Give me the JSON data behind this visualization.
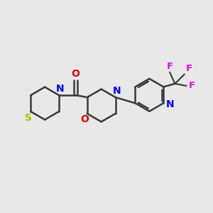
{
  "bg_color": "#e8e8e8",
  "bond_color": "#3a3a3a",
  "N_color": "#0000ff",
  "O_color": "#dd0000",
  "S_color": "#bbbb00",
  "F_color": "#ee00ee",
  "line_width": 1.8,
  "fig_size": [
    3.0,
    3.0
  ],
  "dpi": 100,
  "xlim": [
    0,
    10
  ],
  "ylim": [
    0,
    10
  ]
}
